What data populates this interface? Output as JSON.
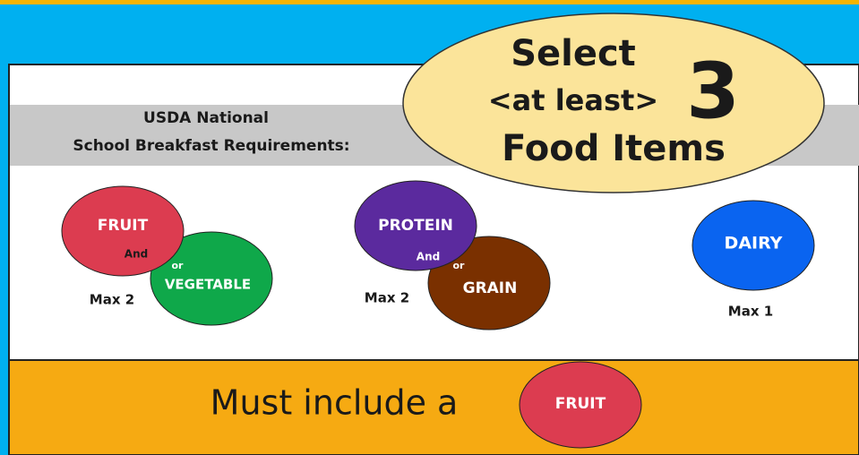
{
  "header": {
    "title_line1": "USDA National",
    "title_line2": "School Breakfast Requirements:"
  },
  "callout": {
    "line1": "Select",
    "line2": "<at least>",
    "number": "3",
    "line3": "Food Items"
  },
  "groups": [
    {
      "first": "FRUIT",
      "connector_and": "And",
      "connector_or": "or",
      "second": "VEGETABLE",
      "limit": "Max 2"
    },
    {
      "first": "PROTEIN",
      "connector_and": "And",
      "connector_or": "or",
      "second": "GRAIN",
      "limit": "Max 2"
    },
    {
      "only": "DAIRY",
      "limit": "Max 1"
    }
  ],
  "footer": {
    "text": "Must include a",
    "badge": "FRUIT"
  }
}
